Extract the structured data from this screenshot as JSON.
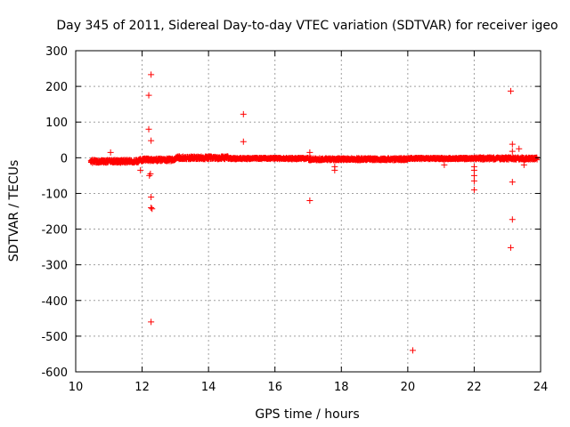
{
  "chart_data": {
    "type": "scatter",
    "title": "Day 345 of 2011, Sidereal Day-to-day VTEC variation (SDTVAR) for receiver igeo",
    "xlabel": "GPS time / hours",
    "ylabel": "SDTVAR / TECUs",
    "xlim": [
      10,
      24
    ],
    "ylim": [
      -600,
      300
    ],
    "xticks": [
      10,
      12,
      14,
      16,
      18,
      20,
      22,
      24
    ],
    "yticks": [
      300,
      200,
      100,
      0,
      -100,
      -200,
      -300,
      -400,
      -500,
      -600
    ],
    "xtick_labels": [
      "10",
      "12",
      "14",
      "16",
      "18",
      "20",
      "22",
      "24"
    ],
    "ytick_labels": [
      "300",
      "200",
      "100",
      "0",
      "-100",
      "-200",
      "-300",
      "-400",
      "-500",
      "-600"
    ],
    "grid": true,
    "marker": "+",
    "color": "#ff0000",
    "band_segments": [
      {
        "x0": 10.45,
        "x1": 11.9,
        "y_center": -10,
        "half_width": 5
      },
      {
        "x0": 11.9,
        "x1": 13.0,
        "y_center": -6,
        "half_width": 5
      },
      {
        "x0": 13.0,
        "x1": 14.6,
        "y_center": 0,
        "half_width": 5
      },
      {
        "x0": 14.6,
        "x1": 17.0,
        "y_center": -2,
        "half_width": 3
      },
      {
        "x0": 17.0,
        "x1": 20.0,
        "y_center": -4,
        "half_width": 4
      },
      {
        "x0": 20.0,
        "x1": 22.0,
        "y_center": -2,
        "half_width": 3
      },
      {
        "x0": 22.0,
        "x1": 23.9,
        "y_center": -2,
        "half_width": 4
      }
    ],
    "outliers": [
      {
        "x": 11.05,
        "y": 15
      },
      {
        "x": 11.95,
        "y": -35
      },
      {
        "x": 12.2,
        "y": 175
      },
      {
        "x": 12.2,
        "y": 80
      },
      {
        "x": 12.22,
        "y": -50
      },
      {
        "x": 12.25,
        "y": -45
      },
      {
        "x": 12.27,
        "y": 233
      },
      {
        "x": 12.27,
        "y": 48
      },
      {
        "x": 12.27,
        "y": -110
      },
      {
        "x": 12.27,
        "y": -140
      },
      {
        "x": 12.3,
        "y": -143
      },
      {
        "x": 12.27,
        "y": -460
      },
      {
        "x": 15.05,
        "y": 122
      },
      {
        "x": 15.05,
        "y": 45
      },
      {
        "x": 17.05,
        "y": -120
      },
      {
        "x": 17.05,
        "y": 15
      },
      {
        "x": 17.8,
        "y": -25
      },
      {
        "x": 17.8,
        "y": -35
      },
      {
        "x": 20.15,
        "y": -540
      },
      {
        "x": 21.1,
        "y": -20
      },
      {
        "x": 22.0,
        "y": -25
      },
      {
        "x": 22.0,
        "y": -35
      },
      {
        "x": 22.0,
        "y": -50
      },
      {
        "x": 22.0,
        "y": -65
      },
      {
        "x": 22.0,
        "y": -90
      },
      {
        "x": 23.1,
        "y": 187
      },
      {
        "x": 23.15,
        "y": 38
      },
      {
        "x": 23.15,
        "y": 18
      },
      {
        "x": 23.15,
        "y": -68
      },
      {
        "x": 23.15,
        "y": -173
      },
      {
        "x": 23.1,
        "y": -252
      },
      {
        "x": 23.35,
        "y": 25
      },
      {
        "x": 23.5,
        "y": -20
      }
    ]
  }
}
